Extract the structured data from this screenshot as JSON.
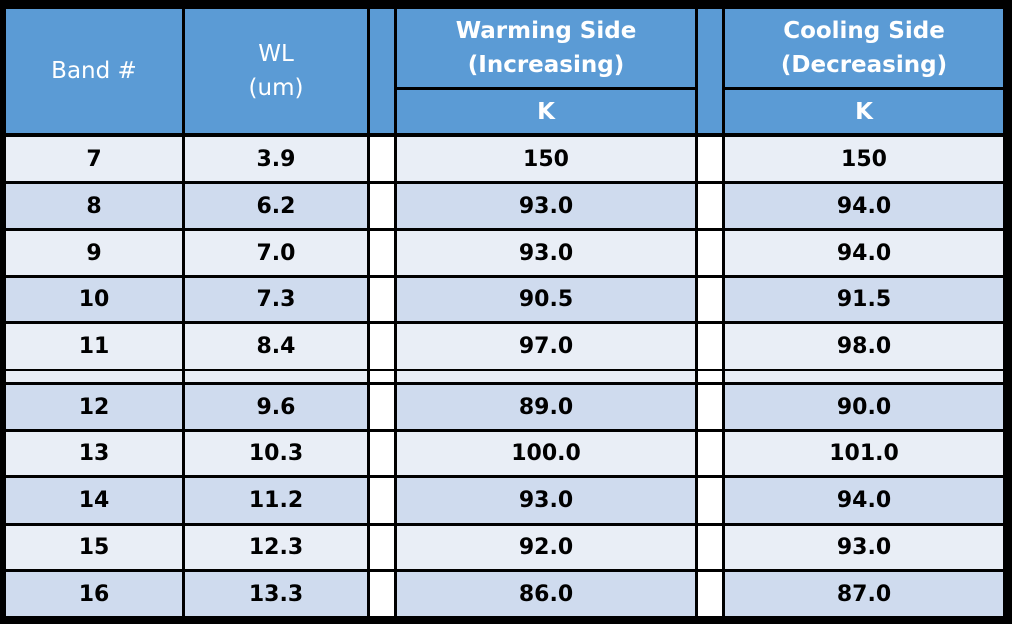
{
  "colors": {
    "header": "#5b9bd5",
    "row_light": "#e9eef6",
    "row_dark": "#cfdbee",
    "border": "#000000",
    "header_text": "#ffffff"
  },
  "header": {
    "band": "Band #",
    "wl": "WL\n(um)",
    "warming": "Warming Side\n(Increasing)",
    "cooling": "Cooling Side\n(Decreasing)",
    "warming_unit": "K",
    "cooling_unit": "K"
  },
  "chart_data": {
    "type": "table",
    "columns": [
      "Band #",
      "WL (um)",
      "Warming Side (Increasing) K",
      "Cooling Side (Decreasing) K"
    ],
    "rows": [
      {
        "band": "7",
        "wl": "3.9",
        "warming": "150",
        "cooling": "150"
      },
      {
        "band": "8",
        "wl": "6.2",
        "warming": "93.0",
        "cooling": "94.0"
      },
      {
        "band": "9",
        "wl": "7.0",
        "warming": "93.0",
        "cooling": "94.0"
      },
      {
        "band": "10",
        "wl": "7.3",
        "warming": "90.5",
        "cooling": "91.5"
      },
      {
        "band": "11",
        "wl": "8.4",
        "warming": "97.0",
        "cooling": "98.0"
      },
      {
        "band": "12",
        "wl": "9.6",
        "warming": "89.0",
        "cooling": "90.0"
      },
      {
        "band": "13",
        "wl": "10.3",
        "warming": "100.0",
        "cooling": "101.0"
      },
      {
        "band": "14",
        "wl": "11.2",
        "warming": "93.0",
        "cooling": "94.0"
      },
      {
        "band": "15",
        "wl": "12.3",
        "warming": "92.0",
        "cooling": "93.0"
      },
      {
        "band": "16",
        "wl": "13.3",
        "warming": "86.0",
        "cooling": "87.0"
      }
    ]
  }
}
